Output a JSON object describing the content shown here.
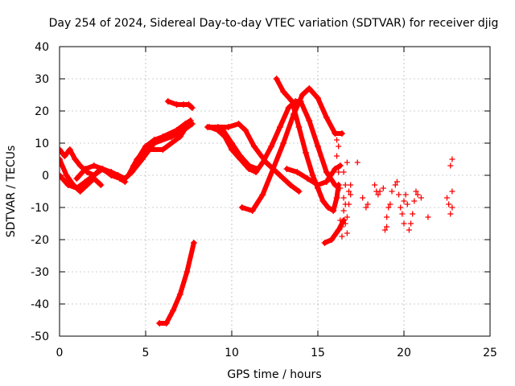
{
  "chart_data": {
    "type": "scatter",
    "title": "Day 254 of 2024, Sidereal Day-to-day VTEC variation (SDTVAR) for receiver djig",
    "xlabel": "GPS time / hours",
    "ylabel": "SDTVAR / TECUs",
    "xlim": [
      0,
      25
    ],
    "ylim": [
      -50,
      40
    ],
    "xticks": [
      "0",
      "5",
      "10",
      "15",
      "20",
      "25"
    ],
    "yticks": [
      "-50",
      "-40",
      "-30",
      "-20",
      "-10",
      "0",
      "10",
      "20",
      "30",
      "40"
    ],
    "grid": true,
    "marker": "plus",
    "color": "#ff0000",
    "tracks": [
      [
        [
          0,
          8
        ],
        [
          0.3,
          6
        ],
        [
          0.6,
          8
        ],
        [
          0.9,
          5
        ],
        [
          1.2,
          3
        ],
        [
          1.6,
          1
        ],
        [
          2.0,
          0
        ],
        [
          2.4,
          2
        ],
        [
          2.8,
          1
        ],
        [
          3.2,
          0
        ]
      ],
      [
        [
          0,
          5
        ],
        [
          0.4,
          0
        ],
        [
          0.8,
          -3
        ],
        [
          1.2,
          -5
        ],
        [
          1.6,
          -3
        ],
        [
          2.0,
          -1
        ],
        [
          2.4,
          -3
        ]
      ],
      [
        [
          0,
          0
        ],
        [
          0.5,
          -3
        ],
        [
          1.0,
          -4
        ],
        [
          1.5,
          -2
        ],
        [
          2.0,
          0
        ],
        [
          2.5,
          2
        ],
        [
          3.0,
          0
        ],
        [
          3.5,
          -1
        ],
        [
          3.8,
          -2
        ]
      ],
      [
        [
          1.0,
          -1
        ],
        [
          1.5,
          2
        ],
        [
          2.0,
          3
        ],
        [
          2.5,
          2
        ],
        [
          3.0,
          1
        ]
      ],
      [
        [
          3.0,
          1
        ],
        [
          3.4,
          0
        ],
        [
          3.8,
          -1
        ],
        [
          4.2,
          1
        ],
        [
          4.8,
          5
        ],
        [
          5.5,
          10
        ],
        [
          6.5,
          12
        ],
        [
          7.2,
          14
        ],
        [
          7.7,
          16
        ]
      ],
      [
        [
          4.0,
          0
        ],
        [
          4.5,
          5
        ],
        [
          5.0,
          8
        ],
        [
          6.0,
          8
        ],
        [
          7.0,
          12
        ],
        [
          7.6,
          17
        ]
      ],
      [
        [
          4.3,
          3
        ],
        [
          5.0,
          9
        ],
        [
          5.5,
          11
        ],
        [
          6.0,
          12
        ],
        [
          6.8,
          14
        ],
        [
          7.3,
          16
        ],
        [
          7.6,
          17
        ]
      ],
      [
        [
          6.3,
          23
        ],
        [
          6.8,
          22
        ],
        [
          7.2,
          22
        ],
        [
          7.5,
          22
        ],
        [
          7.7,
          21
        ]
      ],
      [
        [
          5.8,
          -46
        ],
        [
          6.2,
          -46
        ],
        [
          6.6,
          -42
        ],
        [
          7.0,
          -37
        ],
        [
          7.4,
          -30
        ],
        [
          7.8,
          -21
        ]
      ],
      [
        [
          8.6,
          15
        ],
        [
          9.2,
          15
        ],
        [
          9.8,
          15
        ],
        [
          10.4,
          16
        ],
        [
          10.8,
          14
        ],
        [
          11.3,
          9
        ],
        [
          12.0,
          4
        ],
        [
          12.8,
          0
        ],
        [
          13.4,
          -3
        ],
        [
          13.9,
          -5
        ]
      ],
      [
        [
          8.7,
          15
        ],
        [
          9.2,
          14
        ],
        [
          9.6,
          12
        ],
        [
          10.0,
          8
        ],
        [
          10.5,
          5
        ],
        [
          11.0,
          2
        ],
        [
          11.4,
          1
        ],
        [
          11.8,
          4
        ],
        [
          12.3,
          9
        ],
        [
          12.8,
          15
        ],
        [
          13.3,
          21
        ],
        [
          13.7,
          23
        ],
        [
          14.0,
          23
        ],
        [
          14.5,
          17
        ],
        [
          15.0,
          9
        ],
        [
          15.5,
          1
        ],
        [
          16.0,
          -3
        ]
      ],
      [
        [
          9.5,
          14
        ],
        [
          10.0,
          10
        ],
        [
          10.5,
          6
        ],
        [
          11.0,
          3
        ],
        [
          11.5,
          2
        ]
      ],
      [
        [
          10.6,
          -10
        ],
        [
          11.2,
          -11
        ],
        [
          11.8,
          -6
        ],
        [
          12.4,
          2
        ],
        [
          13.0,
          10
        ],
        [
          13.6,
          19
        ],
        [
          14.1,
          25
        ],
        [
          14.5,
          27
        ],
        [
          15.0,
          24
        ],
        [
          15.5,
          18
        ],
        [
          16.0,
          13
        ],
        [
          16.4,
          13
        ]
      ],
      [
        [
          12.6,
          30
        ],
        [
          13.0,
          26
        ],
        [
          13.5,
          23
        ],
        [
          13.9,
          15
        ],
        [
          14.3,
          7
        ],
        [
          14.7,
          0
        ],
        [
          15.0,
          -4
        ],
        [
          15.3,
          -8
        ],
        [
          15.6,
          -10
        ],
        [
          15.9,
          -11
        ],
        [
          16.1,
          -7
        ],
        [
          16.2,
          -3
        ]
      ],
      [
        [
          13.2,
          2
        ],
        [
          13.8,
          1
        ],
        [
          14.4,
          -1
        ],
        [
          15.0,
          -3
        ],
        [
          15.5,
          -2
        ],
        [
          16.0,
          2
        ],
        [
          16.3,
          3
        ]
      ],
      [
        [
          15.4,
          -21
        ],
        [
          15.8,
          -20
        ],
        [
          16.2,
          -17
        ],
        [
          16.5,
          -14
        ]
      ]
    ],
    "scatter_points": [
      [
        16.0,
        13
      ],
      [
        16.1,
        11
      ],
      [
        16.1,
        6
      ],
      [
        16.2,
        9
      ],
      [
        16.2,
        1
      ],
      [
        16.3,
        -4
      ],
      [
        16.3,
        -14
      ],
      [
        16.4,
        -19
      ],
      [
        16.4,
        -16
      ],
      [
        16.5,
        -11
      ],
      [
        16.5,
        -7
      ],
      [
        16.5,
        1
      ],
      [
        16.6,
        -3
      ],
      [
        16.6,
        -9
      ],
      [
        16.6,
        -15
      ],
      [
        16.7,
        -18
      ],
      [
        16.7,
        -13
      ],
      [
        16.7,
        4
      ],
      [
        16.8,
        -5
      ],
      [
        16.8,
        -9
      ],
      [
        16.9,
        -3
      ],
      [
        16.9,
        -6
      ],
      [
        17.3,
        4
      ],
      [
        17.6,
        -7
      ],
      [
        17.8,
        -10
      ],
      [
        17.9,
        -9
      ],
      [
        18.3,
        -3
      ],
      [
        18.4,
        -5
      ],
      [
        18.5,
        -6
      ],
      [
        18.6,
        -5
      ],
      [
        18.8,
        -4
      ],
      [
        18.9,
        -17
      ],
      [
        19.0,
        -16
      ],
      [
        19.0,
        -13
      ],
      [
        19.1,
        -10
      ],
      [
        19.2,
        -9
      ],
      [
        19.3,
        -5
      ],
      [
        19.5,
        -3
      ],
      [
        19.6,
        -2
      ],
      [
        19.7,
        -6
      ],
      [
        19.8,
        -10
      ],
      [
        19.9,
        -12
      ],
      [
        20.0,
        -15
      ],
      [
        20.0,
        -8
      ],
      [
        20.1,
        -6
      ],
      [
        20.2,
        -9
      ],
      [
        20.3,
        -17
      ],
      [
        20.4,
        -15
      ],
      [
        20.5,
        -12
      ],
      [
        20.6,
        -8
      ],
      [
        20.7,
        -5
      ],
      [
        20.8,
        -6
      ],
      [
        21.0,
        -7
      ],
      [
        21.4,
        -13
      ],
      [
        22.5,
        -7
      ],
      [
        22.6,
        -9
      ],
      [
        22.7,
        -12
      ],
      [
        22.8,
        -10
      ],
      [
        22.8,
        -5
      ],
      [
        22.7,
        3
      ],
      [
        22.8,
        5
      ]
    ]
  }
}
